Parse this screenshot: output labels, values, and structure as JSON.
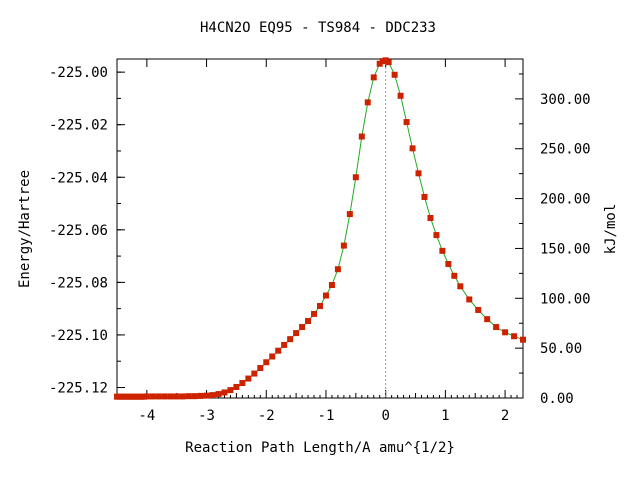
{
  "chart_data": {
    "type": "line",
    "title": "H4CN2O   EQ95 - TS984 - DDC233",
    "xlabel": "Reaction Path Length/A amu^{1/2}",
    "ylabel": "Energy/Hartree",
    "y2label": "kJ/mol",
    "xlim": [
      -4.5,
      2.3
    ],
    "ylim": [
      -225.124,
      -224.995
    ],
    "y2lim": [
      0,
      340
    ],
    "x_ticks": [
      -4,
      -3,
      -2,
      -1,
      0,
      1,
      2
    ],
    "y_ticks": [
      -225.0,
      -225.02,
      -225.04,
      -225.06,
      -225.08,
      -225.1,
      -225.12
    ],
    "y2_ticks": [
      0,
      50,
      100,
      150,
      200,
      250,
      300
    ],
    "x_tick_labels": [
      "-4",
      "-3",
      "-2",
      "-1",
      "0",
      "1",
      "2"
    ],
    "y_tick_labels": [
      "-225.00",
      "-225.02",
      "-225.04",
      "-225.06",
      "-225.08",
      "-225.10",
      "-225.12"
    ],
    "y2_tick_labels": [
      "0.00",
      "50.00",
      "100.00",
      "150.00",
      "200.00",
      "250.00",
      "300.00"
    ],
    "ts_marker_x": 0.0,
    "grid": false,
    "legend": false,
    "colors": {
      "line": "#22aa22",
      "points": "#cc2200",
      "ts_marker": "#999999",
      "axes": "#000000"
    },
    "series": [
      {
        "points": [
          [
            -4.5,
            -225.1235
          ],
          [
            -4.45,
            -225.1235
          ],
          [
            -4.4,
            -225.1235
          ],
          [
            -4.35,
            -225.1235
          ],
          [
            -4.3,
            -225.1235
          ],
          [
            -4.25,
            -225.1235
          ],
          [
            -4.2,
            -225.1235
          ],
          [
            -4.15,
            -225.1235
          ],
          [
            -4.1,
            -225.1235
          ],
          [
            -4.05,
            -225.1235
          ],
          [
            -4.0,
            -225.1234
          ],
          [
            -3.9,
            -225.1234
          ],
          [
            -3.8,
            -225.1234
          ],
          [
            -3.7,
            -225.1234
          ],
          [
            -3.6,
            -225.1234
          ],
          [
            -3.5,
            -225.1234
          ],
          [
            -3.4,
            -225.1234
          ],
          [
            -3.3,
            -225.1233
          ],
          [
            -3.2,
            -225.1233
          ],
          [
            -3.1,
            -225.1232
          ],
          [
            -3.0,
            -225.1231
          ],
          [
            -2.9,
            -225.1229
          ],
          [
            -2.8,
            -225.1225
          ],
          [
            -2.7,
            -225.1219
          ],
          [
            -2.6,
            -225.121
          ],
          [
            -2.5,
            -225.1198
          ],
          [
            -2.4,
            -225.1183
          ],
          [
            -2.3,
            -225.1166
          ],
          [
            -2.2,
            -225.1147
          ],
          [
            -2.1,
            -225.1126
          ],
          [
            -2.0,
            -225.1104
          ],
          [
            -1.9,
            -225.1082
          ],
          [
            -1.8,
            -225.106
          ],
          [
            -1.7,
            -225.1038
          ],
          [
            -1.6,
            -225.1016
          ],
          [
            -1.5,
            -225.0993
          ],
          [
            -1.4,
            -225.097
          ],
          [
            -1.3,
            -225.0947
          ],
          [
            -1.2,
            -225.092
          ],
          [
            -1.1,
            -225.089
          ],
          [
            -1.0,
            -225.085
          ],
          [
            -0.9,
            -225.081
          ],
          [
            -0.8,
            -225.075
          ],
          [
            -0.7,
            -225.066
          ],
          [
            -0.6,
            -225.054
          ],
          [
            -0.5,
            -225.04
          ],
          [
            -0.4,
            -225.0245
          ],
          [
            -0.3,
            -225.0115
          ],
          [
            -0.2,
            -225.002
          ],
          [
            -0.1,
            -224.9968
          ],
          [
            -0.05,
            -224.9958
          ],
          [
            0.0,
            -224.9955
          ],
          [
            0.05,
            -224.9962
          ],
          [
            0.15,
            -225.001
          ],
          [
            0.25,
            -225.009
          ],
          [
            0.35,
            -225.019
          ],
          [
            0.45,
            -225.029
          ],
          [
            0.55,
            -225.0385
          ],
          [
            0.65,
            -225.0475
          ],
          [
            0.75,
            -225.0555
          ],
          [
            0.85,
            -225.062
          ],
          [
            0.95,
            -225.068
          ],
          [
            1.05,
            -225.073
          ],
          [
            1.15,
            -225.0775
          ],
          [
            1.25,
            -225.0815
          ],
          [
            1.4,
            -225.0865
          ],
          [
            1.55,
            -225.0905
          ],
          [
            1.7,
            -225.094
          ],
          [
            1.85,
            -225.097
          ],
          [
            2.0,
            -225.099
          ],
          [
            2.15,
            -225.1005
          ],
          [
            2.3,
            -225.1018
          ]
        ]
      }
    ]
  }
}
